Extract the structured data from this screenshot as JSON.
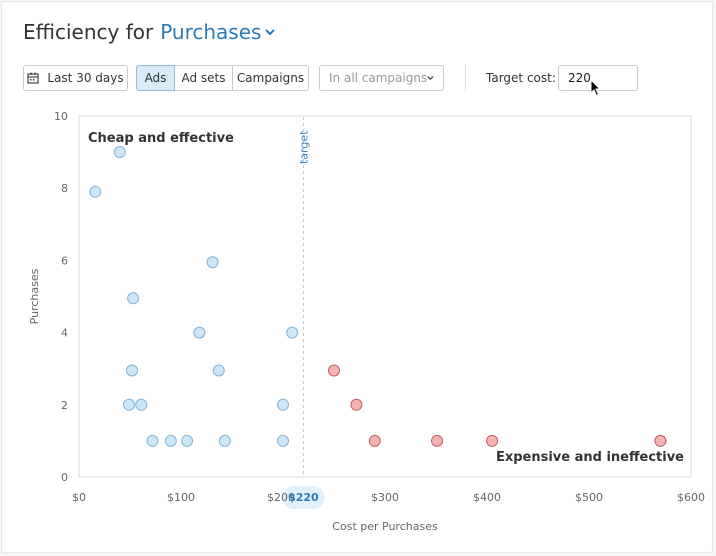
{
  "header": {
    "title_prefix": "Efficiency for",
    "title_metric": "Purchases"
  },
  "toolbar": {
    "date_range": "Last 30 days",
    "level_tabs": [
      "Ads",
      "Ad sets",
      "Campaigns"
    ],
    "active_level": "Ads",
    "campaign_select": "In all campaigns",
    "target_label": "Target cost:",
    "target_value": "220"
  },
  "colors": {
    "accent": "#2d7bb6",
    "efficient_fill": "#cfe6f6",
    "efficient_stroke": "#7fb4dc",
    "inefficient_fill": "#f4b3b3",
    "inefficient_stroke": "#c85c5c"
  },
  "chart_data": {
    "type": "scatter",
    "xlabel": "Cost per Purchases",
    "ylabel": "Purchases",
    "xlim": [
      0,
      600
    ],
    "ylim": [
      0,
      10
    ],
    "x_ticks": [
      {
        "value": 0,
        "label": "$0"
      },
      {
        "value": 100,
        "label": "$100"
      },
      {
        "value": 200,
        "label": "$200"
      },
      {
        "value": 300,
        "label": "$300"
      },
      {
        "value": 400,
        "label": "$400"
      },
      {
        "value": 500,
        "label": "$500"
      },
      {
        "value": 600,
        "label": "$600"
      }
    ],
    "y_ticks": [
      0,
      2,
      4,
      6,
      8,
      10
    ],
    "target": {
      "value": 220,
      "label": "target",
      "tick_label": "$220"
    },
    "quadrant_labels": {
      "top_left": "Cheap and effective",
      "bottom_right": "Expensive and ineffective"
    },
    "grid": false,
    "series": [
      {
        "status": "below-target",
        "points": [
          {
            "x": 16,
            "y": 7.9
          },
          {
            "x": 40,
            "y": 9.0
          },
          {
            "x": 53,
            "y": 4.95
          },
          {
            "x": 52,
            "y": 2.95
          },
          {
            "x": 49,
            "y": 2.0
          },
          {
            "x": 61,
            "y": 2.0
          },
          {
            "x": 72,
            "y": 1.0
          },
          {
            "x": 90,
            "y": 1.0
          },
          {
            "x": 106,
            "y": 1.0
          },
          {
            "x": 118,
            "y": 4.0
          },
          {
            "x": 131,
            "y": 5.95
          },
          {
            "x": 137,
            "y": 2.95
          },
          {
            "x": 143,
            "y": 1.0
          },
          {
            "x": 200,
            "y": 2.0
          },
          {
            "x": 200,
            "y": 1.0
          },
          {
            "x": 209,
            "y": 4.0
          }
        ]
      },
      {
        "status": "above-target",
        "points": [
          {
            "x": 250,
            "y": 2.95
          },
          {
            "x": 272,
            "y": 2.0
          },
          {
            "x": 290,
            "y": 1.0
          },
          {
            "x": 351,
            "y": 1.0
          },
          {
            "x": 405,
            "y": 1.0
          },
          {
            "x": 570,
            "y": 1.0
          }
        ]
      }
    ]
  }
}
